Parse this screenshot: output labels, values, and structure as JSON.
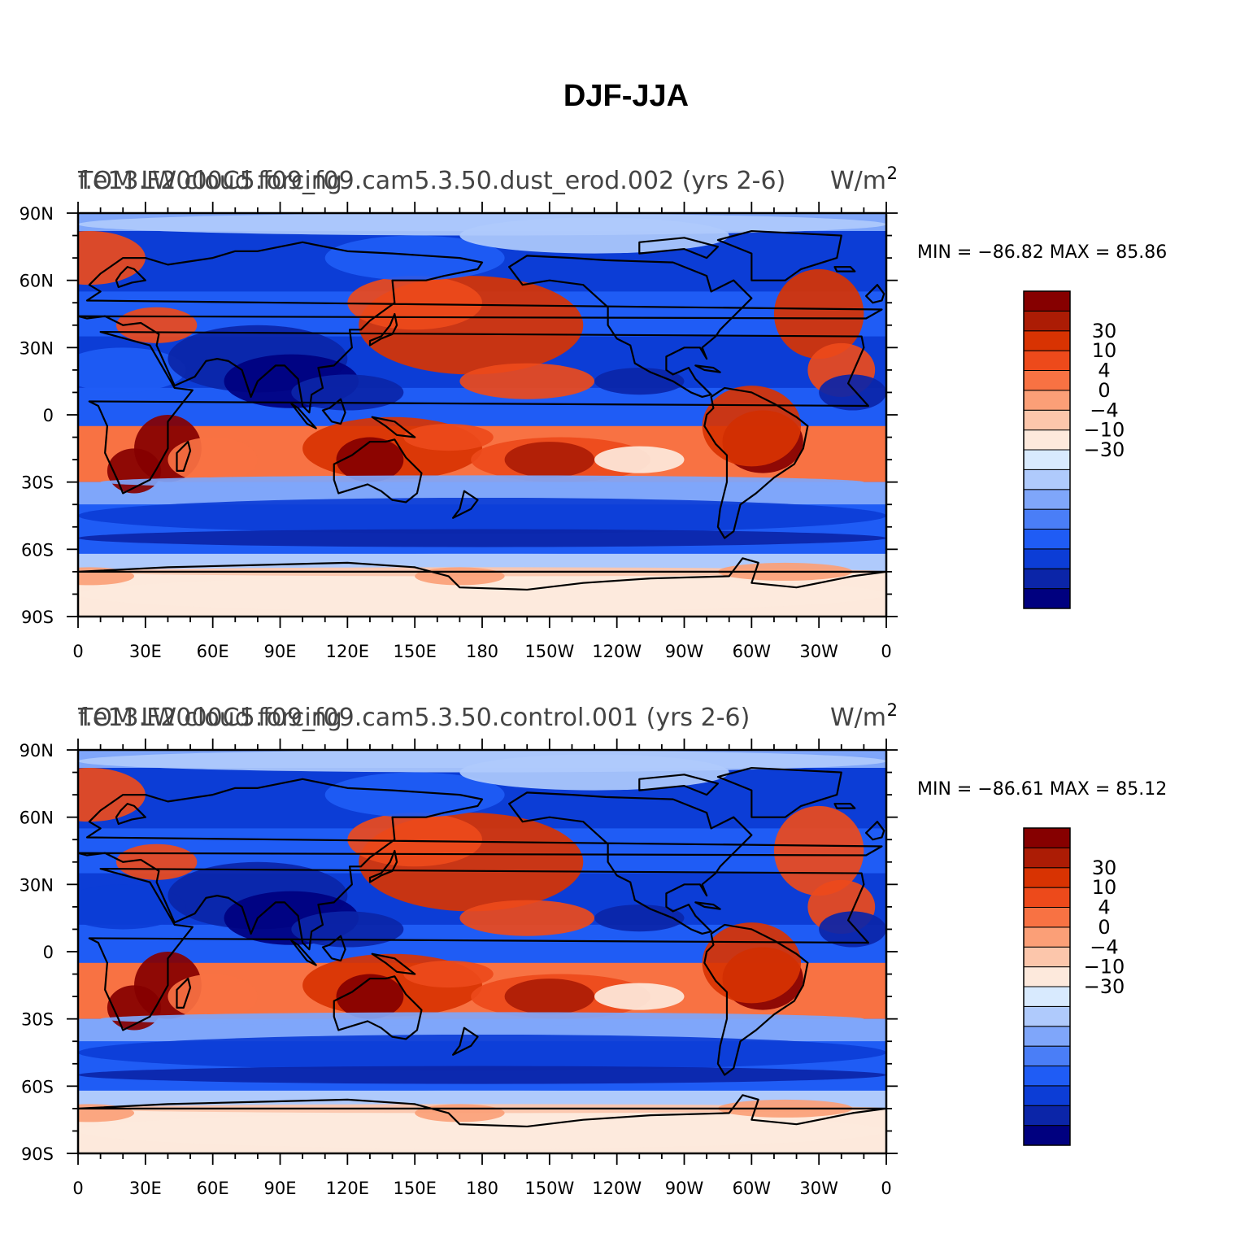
{
  "title": "DJF-JJA",
  "colors": {
    "levels": [
      "#00007f",
      "#0b25a8",
      "#0c3dd6",
      "#1f5cf5",
      "#4a7ef7",
      "#7fa6fa",
      "#afcafc",
      "#d8eafe",
      "#fde9dc",
      "#fcc6ab",
      "#fb9f77",
      "#f87243",
      "#ed4a1b",
      "#d83302",
      "#ac1c05",
      "#860000"
    ],
    "coast": "#000000",
    "frame": "#000000"
  },
  "axes": {
    "x_ticks": [
      "0",
      "30E",
      "60E",
      "90E",
      "120E",
      "150E",
      "180",
      "150W",
      "120W",
      "90W",
      "60W",
      "30W",
      "0"
    ],
    "y_ticks": [
      "90N",
      "60N",
      "30N",
      "0",
      "30S",
      "60S",
      "90S"
    ]
  },
  "legend_labels": [
    "30",
    "10",
    "4",
    "0",
    "−4",
    "−10",
    "−30"
  ],
  "panels": [
    {
      "title_left_1": "f.e13.F2000C5.f09_f09.cam5.3.50.dust_erod.002 (yrs 2-6)",
      "title_left_2": "TOM LW cloud forcing",
      "title_right": "W/m",
      "title_right_sup": "2",
      "min_label": "MIN =",
      "min_value": "−86.82",
      "max_label": "MAX =",
      "max_value": "85.86"
    },
    {
      "title_left_1": "f.e13.F2000C5.f09_f09.cam5.3.50.control.001 (yrs 2-6)",
      "title_left_2": "TOM LW cloud forcing",
      "title_right": "W/m",
      "title_right_sup": "2",
      "min_label": "MIN =",
      "min_value": "−86.61",
      "max_label": "MAX =",
      "max_value": "85.12"
    }
  ]
}
